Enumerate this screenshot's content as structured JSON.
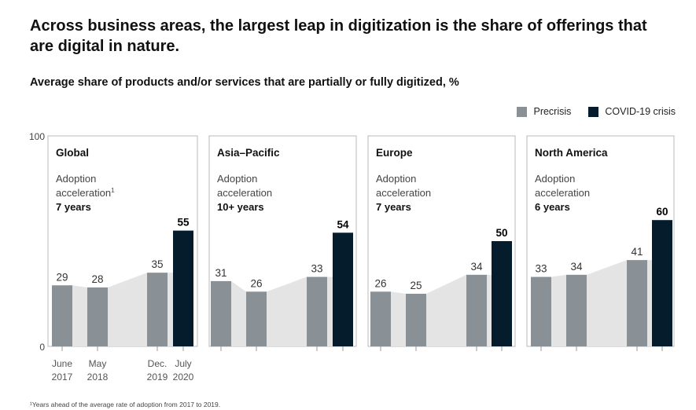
{
  "title": "Across business areas, the largest leap in digitization is the share of offerings that are digital in nature.",
  "subtitle": "Average share of products and/or services that are partially or fully digitized, %",
  "legend": [
    {
      "label": "Precrisis",
      "color": "#8a9196"
    },
    {
      "label": "COVID-19 crisis",
      "color": "#051c2c"
    }
  ],
  "footnote": "¹Years ahead of the average rate of adoption from 2017 to 2019.",
  "chart_data": {
    "type": "bar",
    "ylim": [
      0,
      100
    ],
    "y_tick_labels": [
      "100",
      "0"
    ],
    "categories": [
      "June\n2017",
      "May\n2018",
      "Dec.\n2019",
      "July\n2020"
    ],
    "panels": [
      {
        "name": "Global",
        "acceleration_label": "Adoption acceleration",
        "acceleration_marker": "1",
        "acceleration_value": "7 years",
        "values": [
          29,
          28,
          35,
          55
        ]
      },
      {
        "name": "Asia–Pacific",
        "acceleration_label": "Adoption acceleration",
        "acceleration_marker": "",
        "acceleration_value": "10+ years",
        "values": [
          31,
          26,
          33,
          54
        ]
      },
      {
        "name": "Europe",
        "acceleration_label": "Adoption acceleration",
        "acceleration_marker": "",
        "acceleration_value": "7 years",
        "values": [
          26,
          25,
          34,
          50
        ]
      },
      {
        "name": "North America",
        "acceleration_label": "Adoption acceleration",
        "acceleration_marker": "",
        "acceleration_value": "6 years",
        "values": [
          33,
          34,
          41,
          60
        ]
      }
    ],
    "series": [
      {
        "name": "Precrisis",
        "bars": [
          0,
          1,
          2
        ]
      },
      {
        "name": "COVID-19 crisis",
        "bars": [
          3
        ]
      }
    ],
    "colors": {
      "precrisis": "#8a9196",
      "covid": "#051c2c",
      "area": "#e4e4e4"
    }
  }
}
